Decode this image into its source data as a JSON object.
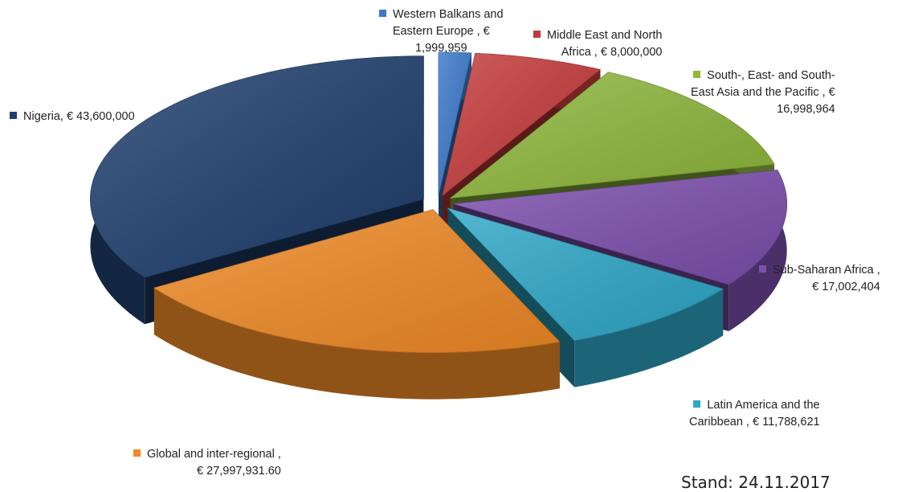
{
  "chart_data": {
    "type": "pie",
    "title": "",
    "slices": [
      {
        "label": "Western Balkans and Eastern Europe , € 1,999,959",
        "value": 1999959,
        "color": "#3a78c9"
      },
      {
        "label": "Middle East and North Africa , € 8,000,000",
        "value": 8000000,
        "color": "#c53a3a"
      },
      {
        "label": "South-, East- and South-East Asia and the Pacific , € 16,998,964",
        "value": 16998964,
        "color": "#8fb83c"
      },
      {
        "label": "Sub-Saharan Africa , € 17,002,404",
        "value": 17002404,
        "color": "#7d4fae"
      },
      {
        "label": "Latin America and the Caribbean , € 11,788,621",
        "value": 11788621,
        "color": "#2fa8c8"
      },
      {
        "label": "Global and inter-regional , € 27,997,931.60",
        "value": 27997931.6,
        "color": "#f08a26"
      },
      {
        "label": "Nigeria, € 43,600,000",
        "value": 43600000,
        "color": "#1f3f6e"
      }
    ]
  },
  "labels": {
    "western_balkans": [
      "Western Balkans and",
      "Eastern Europe , €",
      "1,999,959"
    ],
    "middle_east": [
      "Middle East and North",
      "Africa , € 8,000,000"
    ],
    "south_east_asia": [
      "South-, East- and South-",
      "East Asia and the Pacific , €",
      "16,998,964"
    ],
    "sub_saharan": [
      "Sub-Saharan Africa ,",
      "€ 17,002,404"
    ],
    "latin_america": [
      "Latin America and the",
      "Caribbean , € 11,788,621"
    ],
    "global": [
      "Global and inter-regional ,",
      "€ 27,997,931.60"
    ],
    "nigeria": [
      "Nigeria, € 43,600,000"
    ]
  },
  "footer_text": "Stand: 24.11.2017"
}
